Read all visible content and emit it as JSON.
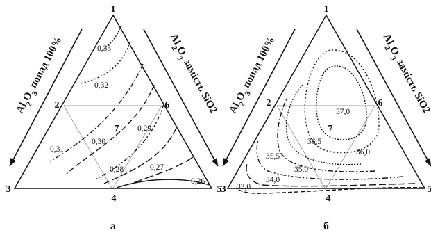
{
  "side_labels": {
    "left": "Al2O3 понад 100%",
    "right": "Al2O3 замість SiO2"
  },
  "chart_data": [
    {
      "type": "contour",
      "panel_label": "а",
      "vertex_labels": [
        "1",
        "2",
        "3",
        "4",
        "5",
        "6",
        "7"
      ],
      "contour_levels": [
        "0,33",
        "0,32",
        "0,31",
        "0,30",
        "0,29",
        "0,28",
        "0,27",
        "0,26"
      ]
    },
    {
      "type": "contour",
      "panel_label": "б",
      "vertex_labels": [
        "1",
        "2",
        "3",
        "4",
        "5",
        "6",
        "7"
      ],
      "contour_levels": [
        "37,0",
        "36,5",
        "36,0",
        "35,5",
        "35,0",
        "34,0",
        "33,0"
      ]
    }
  ]
}
